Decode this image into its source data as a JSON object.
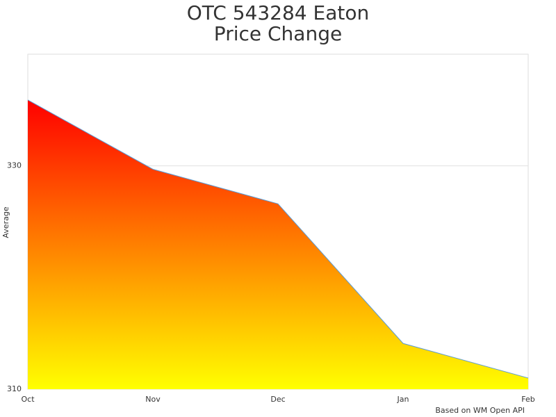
{
  "chart_data": {
    "type": "area",
    "title": [
      "OTC 543284 Eaton",
      "Price Change"
    ],
    "y_label": "Average",
    "credits": "Based on WM Open API",
    "categories": [
      "Oct",
      "Nov",
      "Dec",
      "Jan",
      "Feb"
    ],
    "values": [
      335.9,
      329.7,
      326.6,
      314.1,
      311.0
    ],
    "ylim": [
      310,
      340
    ],
    "yticks": [
      310,
      330
    ],
    "grid": true,
    "gradient": [
      "#ff0000",
      "#ffff00"
    ],
    "line_color": "#5b9bd5"
  }
}
